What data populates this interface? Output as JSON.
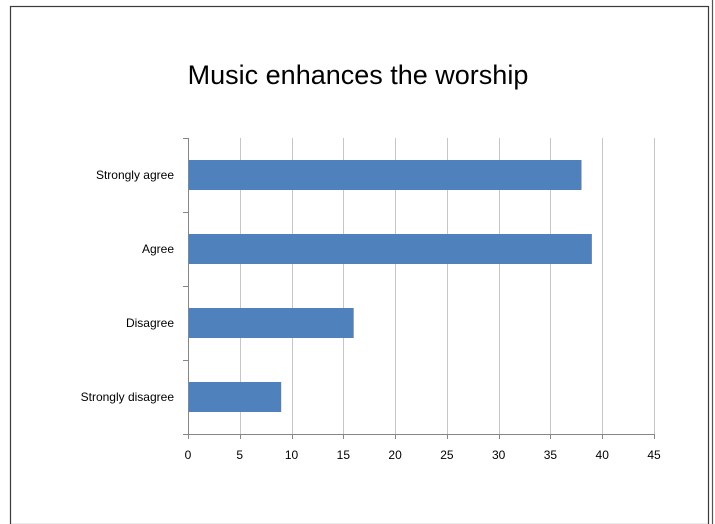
{
  "chart_data": {
    "type": "bar",
    "orientation": "horizontal",
    "title": "Music enhances the worship",
    "categories": [
      "Strongly agree",
      "Agree",
      "Disagree",
      "Strongly disagree"
    ],
    "values": [
      38,
      39,
      16,
      9
    ],
    "xlim": [
      0,
      45
    ],
    "x_ticks": [
      "0",
      "5",
      "10",
      "15",
      "20",
      "25",
      "30",
      "35",
      "40",
      "45"
    ],
    "grid": "vertical",
    "legend": "none",
    "bar_color": "#4f81bd",
    "grid_color": "#c6c6c6",
    "axis_color": "#868686"
  }
}
